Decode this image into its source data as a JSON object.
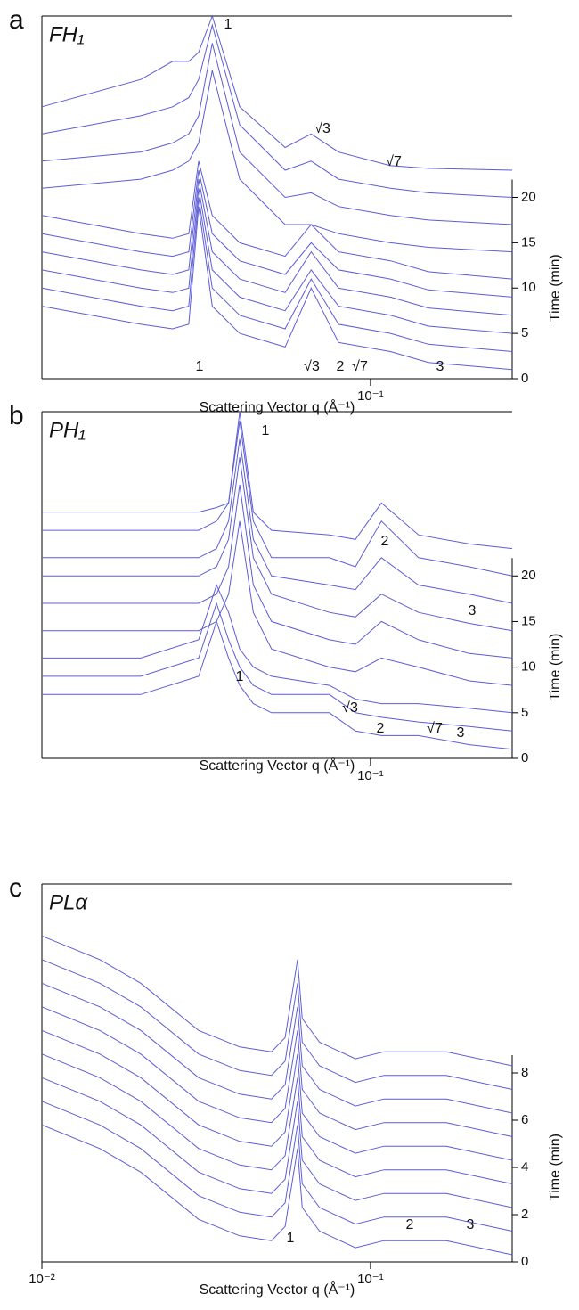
{
  "chart_data": [
    {
      "type": "line",
      "panel_label": "a",
      "title": "FH₁",
      "color": "#5c5cd6",
      "x": [
        0.01,
        0.02,
        0.025,
        0.028,
        0.03,
        0.033,
        0.04,
        0.055,
        0.066,
        0.08,
        0.115,
        0.15,
        0.27
      ],
      "series": [
        {
          "values": [
            8,
            6,
            5.5,
            6,
            19,
            8,
            5,
            3.5,
            10,
            4,
            3,
            1.8,
            1
          ]
        },
        {
          "values": [
            10,
            8,
            7.5,
            8,
            20,
            10,
            7,
            5.5,
            11,
            6,
            5,
            3.8,
            3
          ]
        },
        {
          "values": [
            12,
            10,
            9.5,
            10,
            21,
            12,
            9,
            7.5,
            12,
            8,
            7,
            5.8,
            5
          ]
        },
        {
          "values": [
            14,
            12,
            11.5,
            12,
            22,
            14,
            11,
            9.5,
            14,
            10,
            9,
            7.8,
            7
          ]
        },
        {
          "values": [
            16,
            14,
            13.5,
            14,
            23,
            16,
            13,
            11.5,
            15,
            12,
            11,
            9.8,
            9
          ]
        },
        {
          "values": [
            18,
            16,
            15.5,
            16,
            24,
            18,
            15,
            13.5,
            17,
            14,
            13,
            11.8,
            11
          ]
        },
        {
          "values": [
            21,
            22,
            23,
            24,
            26,
            34,
            22,
            17,
            17,
            16,
            15,
            14.5,
            14
          ]
        },
        {
          "values": [
            24,
            25,
            26,
            27,
            29,
            37,
            25,
            20,
            20.5,
            19,
            18,
            17.5,
            17
          ]
        },
        {
          "values": [
            27,
            29,
            30,
            31,
            33,
            39,
            28,
            23,
            24,
            22,
            21,
            20.5,
            20
          ]
        },
        {
          "values": [
            30,
            33,
            35,
            35,
            36,
            40,
            30,
            25.5,
            27,
            25,
            23.5,
            23.2,
            23
          ]
        }
      ],
      "xlim": [
        0.01,
        0.27
      ],
      "ylim": [
        0,
        40
      ],
      "log_x": true,
      "xticks": [
        {
          "value": 0.1,
          "label": "10⁻¹"
        }
      ],
      "yticks": [
        0,
        5,
        10,
        15,
        20
      ],
      "x_label": "Scattering Vector q (Å⁻¹)",
      "y_label": "Time (min)",
      "annotations": [
        "1",
        "√3",
        "√7",
        "1",
        "√3",
        "2",
        "√7",
        "3"
      ]
    },
    {
      "type": "line",
      "panel_label": "b",
      "title": "PH₁",
      "color": "#5c5cd6",
      "x": [
        0.01,
        0.02,
        0.03,
        0.034,
        0.037,
        0.04,
        0.044,
        0.05,
        0.075,
        0.09,
        0.108,
        0.14,
        0.2,
        0.27
      ],
      "series": [
        {
          "values": [
            7,
            7,
            9,
            15,
            11,
            8,
            6,
            5,
            5,
            3,
            2.5,
            2.5,
            1.5,
            1
          ]
        },
        {
          "values": [
            9,
            9,
            11,
            17,
            13,
            10,
            8,
            7,
            7,
            5,
            4.5,
            4,
            3.5,
            3
          ]
        },
        {
          "values": [
            11,
            11,
            13,
            19,
            16,
            12,
            10,
            9,
            8,
            6.5,
            6,
            6,
            5.5,
            5
          ]
        },
        {
          "values": [
            14,
            14,
            14,
            15,
            18,
            26,
            16,
            12,
            10,
            9.5,
            11,
            10,
            8.5,
            8
          ]
        },
        {
          "values": [
            17,
            17,
            17,
            18,
            21,
            30,
            19,
            15,
            13,
            12.5,
            15,
            13,
            11.5,
            11
          ]
        },
        {
          "values": [
            20,
            20,
            20,
            21,
            24,
            33,
            22,
            18,
            16,
            15.5,
            18,
            16,
            14.8,
            14
          ]
        },
        {
          "values": [
            22,
            22,
            22,
            23,
            26,
            35,
            24,
            20,
            19,
            18.5,
            22,
            19,
            18,
            17
          ]
        },
        {
          "values": [
            25,
            25,
            25,
            26,
            28,
            37,
            26,
            22,
            22,
            21,
            26,
            22,
            21,
            20
          ]
        },
        {
          "values": [
            27,
            27,
            27,
            27.5,
            28,
            38,
            27,
            25,
            24.5,
            24,
            28,
            24.5,
            23.5,
            23
          ]
        }
      ],
      "xlim": [
        0.01,
        0.27
      ],
      "ylim": [
        0,
        38
      ],
      "log_x": true,
      "xticks": [
        {
          "value": 0.1,
          "label": "10⁻¹"
        }
      ],
      "yticks": [
        0,
        5,
        10,
        15,
        20
      ],
      "x_label": "Scattering Vector q (Å⁻¹)",
      "y_label": "Time (min)",
      "annotations": [
        "1",
        "2",
        "3",
        "1",
        "√3",
        "2",
        "√7",
        "3"
      ]
    },
    {
      "type": "line",
      "panel_label": "c",
      "title": "PLα",
      "color": "#5c5cd6",
      "x": [
        0.01,
        0.015,
        0.02,
        0.03,
        0.04,
        0.05,
        0.055,
        0.06,
        0.062,
        0.07,
        0.09,
        0.11,
        0.17,
        0.27
      ],
      "series": [
        {
          "values": [
            5.8,
            4.8,
            3.8,
            1.8,
            1.1,
            0.9,
            1.5,
            4.8,
            2.3,
            1.3,
            0.6,
            0.9,
            0.9,
            0.3
          ]
        },
        {
          "values": [
            6.8,
            5.8,
            4.8,
            2.8,
            2.1,
            1.9,
            2.5,
            5.8,
            3.3,
            2.3,
            1.6,
            1.9,
            1.9,
            1.3
          ]
        },
        {
          "values": [
            7.8,
            6.8,
            5.8,
            3.8,
            3.1,
            2.9,
            3.5,
            6.8,
            4.3,
            3.3,
            2.6,
            2.9,
            2.9,
            2.3
          ]
        },
        {
          "values": [
            8.8,
            7.8,
            6.8,
            4.8,
            4.1,
            3.9,
            4.5,
            7.8,
            5.3,
            4.3,
            3.6,
            3.9,
            3.9,
            3.3
          ]
        },
        {
          "values": [
            9.8,
            8.8,
            7.8,
            5.8,
            5.1,
            4.9,
            5.5,
            8.8,
            6.3,
            5.3,
            4.6,
            4.9,
            4.9,
            4.3
          ]
        },
        {
          "values": [
            10.8,
            9.8,
            8.8,
            6.8,
            6.1,
            5.9,
            6.5,
            9.8,
            7.3,
            6.3,
            5.6,
            5.9,
            5.9,
            5.3
          ]
        },
        {
          "values": [
            11.8,
            10.8,
            9.8,
            7.8,
            7.1,
            6.9,
            7.5,
            10.8,
            8.3,
            7.3,
            6.6,
            6.9,
            6.9,
            6.3
          ]
        },
        {
          "values": [
            12.8,
            11.8,
            10.8,
            8.8,
            8.1,
            7.9,
            8.5,
            11.8,
            9.3,
            8.3,
            7.6,
            7.9,
            7.9,
            7.3
          ]
        },
        {
          "values": [
            13.8,
            12.8,
            11.8,
            9.8,
            9.1,
            8.9,
            9.5,
            12.8,
            10.3,
            9.3,
            8.6,
            8.9,
            8.9,
            8.3
          ]
        }
      ],
      "xlim": [
        0.01,
        0.27
      ],
      "ylim": [
        0,
        16
      ],
      "log_x": true,
      "xticks": [
        {
          "value": 0.01,
          "label": "10⁻²"
        },
        {
          "value": 0.1,
          "label": "10⁻¹"
        }
      ],
      "yticks": [
        0,
        2,
        4,
        6,
        8
      ],
      "x_label": "Scattering Vector q (Å⁻¹)",
      "y_label": "Time (min)",
      "annotations": [
        "1",
        "2",
        "3"
      ]
    }
  ]
}
